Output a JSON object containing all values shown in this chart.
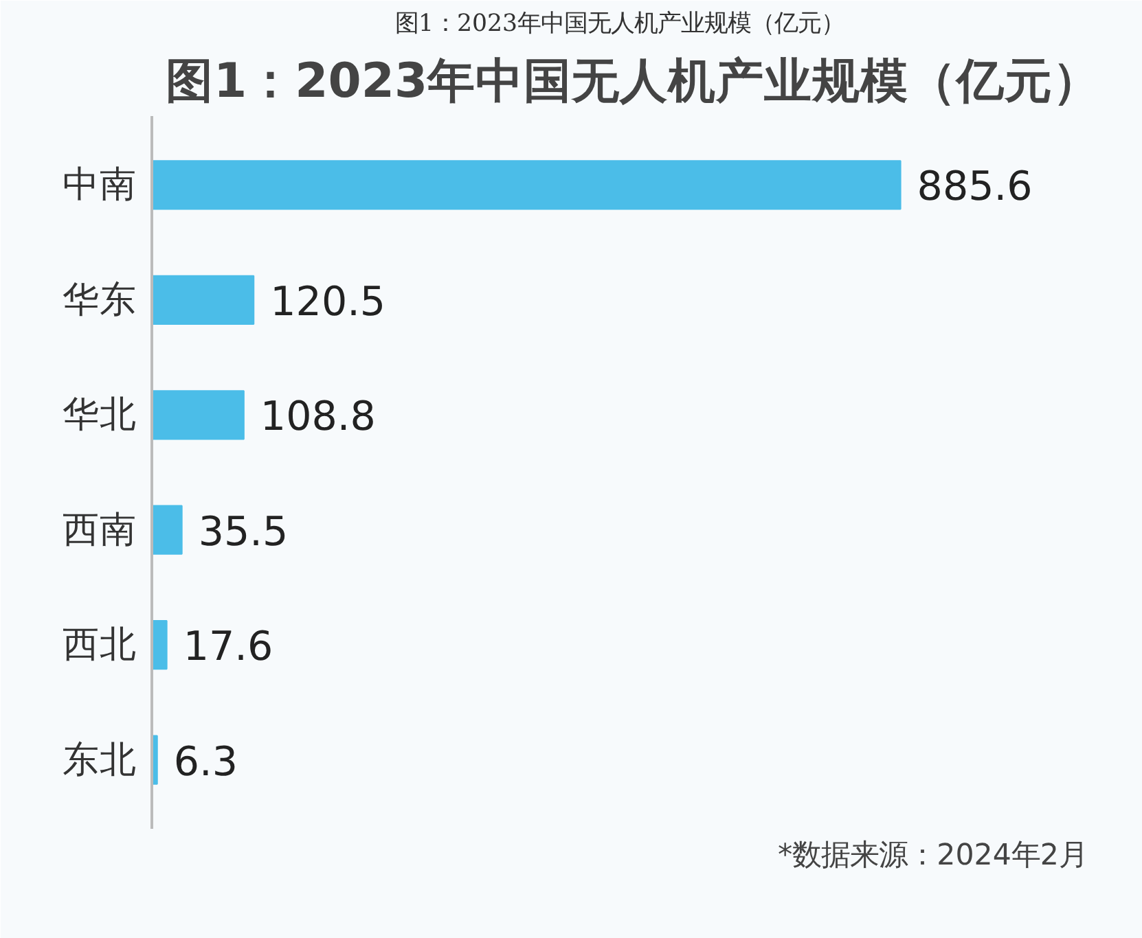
{
  "chart_data": {
    "type": "bar",
    "orientation": "horizontal",
    "title": "图1：2023年中国无人机产业规模（亿元）",
    "categories": [
      "中南",
      "华东",
      "华北",
      "西南",
      "西北",
      "东北"
    ],
    "values": [
      885.6,
      120.5,
      108.8,
      35.5,
      17.6,
      6.3
    ],
    "color": "#4bbde8",
    "data_labels": true,
    "grid": false,
    "annotations": [
      "图1：2023年中国无人机产业规模（亿元）",
      "*数据来源：2024年2月"
    ]
  }
}
